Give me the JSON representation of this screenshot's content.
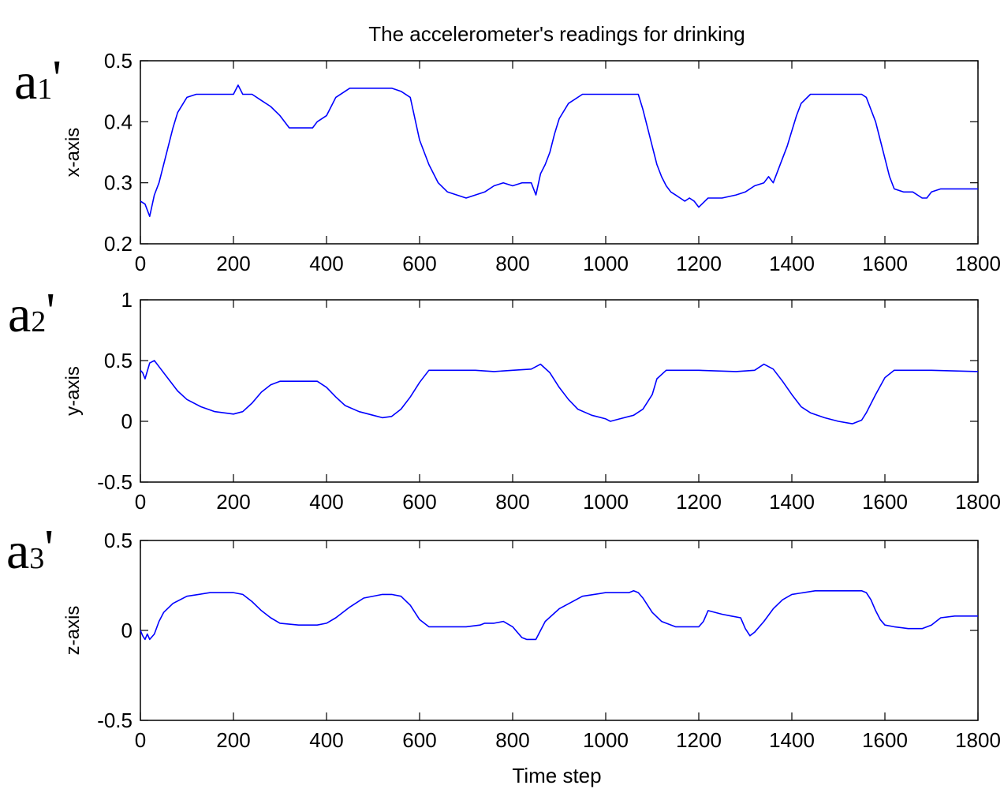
{
  "title": "The accelerometer's readings for drinking",
  "xlabel": "Time step",
  "line_color": "#0000ff",
  "chart_data": [
    {
      "type": "line",
      "panel_tag": {
        "main": "a",
        "sub": "1",
        "prime": "'"
      },
      "ylabel": "x-axis",
      "xlim": [
        0,
        1800
      ],
      "ylim": [
        0.2,
        0.5
      ],
      "xticks": [
        0,
        200,
        400,
        600,
        800,
        1000,
        1200,
        1400,
        1600,
        1800
      ],
      "yticks": [
        0.2,
        0.3,
        0.4,
        0.5
      ],
      "ytick_labels": [
        "0.2",
        "0.3",
        "0.4",
        "0.5"
      ],
      "series": [
        {
          "x": [
            0,
            10,
            20,
            30,
            40,
            50,
            60,
            70,
            80,
            100,
            120,
            150,
            180,
            200,
            210,
            220,
            240,
            260,
            280,
            300,
            320,
            350,
            370,
            380,
            400,
            420,
            450,
            480,
            510,
            540,
            560,
            580,
            600,
            620,
            640,
            660,
            680,
            700,
            720,
            740,
            760,
            780,
            800,
            820,
            840,
            850,
            860,
            870,
            880,
            890,
            900,
            920,
            950,
            1000,
            1040,
            1060,
            1070,
            1080,
            1090,
            1100,
            1110,
            1120,
            1130,
            1140,
            1150,
            1160,
            1170,
            1180,
            1190,
            1200,
            1220,
            1250,
            1280,
            1300,
            1320,
            1340,
            1350,
            1360,
            1370,
            1380,
            1390,
            1400,
            1410,
            1420,
            1440,
            1480,
            1520,
            1540,
            1550,
            1560,
            1570,
            1580,
            1590,
            1600,
            1610,
            1620,
            1640,
            1660,
            1680,
            1690,
            1700,
            1720,
            1750,
            1800
          ],
          "y": [
            0.27,
            0.265,
            0.245,
            0.28,
            0.3,
            0.33,
            0.36,
            0.39,
            0.415,
            0.44,
            0.445,
            0.445,
            0.445,
            0.445,
            0.46,
            0.445,
            0.445,
            0.435,
            0.425,
            0.41,
            0.39,
            0.39,
            0.39,
            0.4,
            0.41,
            0.44,
            0.455,
            0.455,
            0.455,
            0.455,
            0.45,
            0.44,
            0.37,
            0.33,
            0.3,
            0.285,
            0.28,
            0.275,
            0.28,
            0.285,
            0.295,
            0.3,
            0.295,
            0.3,
            0.3,
            0.28,
            0.315,
            0.33,
            0.35,
            0.38,
            0.405,
            0.43,
            0.445,
            0.445,
            0.445,
            0.445,
            0.445,
            0.42,
            0.39,
            0.36,
            0.33,
            0.31,
            0.295,
            0.285,
            0.28,
            0.275,
            0.27,
            0.275,
            0.27,
            0.26,
            0.275,
            0.275,
            0.28,
            0.285,
            0.295,
            0.3,
            0.31,
            0.3,
            0.32,
            0.34,
            0.36,
            0.385,
            0.41,
            0.43,
            0.445,
            0.445,
            0.445,
            0.445,
            0.445,
            0.44,
            0.42,
            0.4,
            0.37,
            0.34,
            0.31,
            0.29,
            0.285,
            0.285,
            0.275,
            0.275,
            0.285,
            0.29,
            0.29,
            0.29
          ]
        }
      ]
    },
    {
      "type": "line",
      "panel_tag": {
        "main": "a",
        "sub": "2",
        "prime": "'"
      },
      "ylabel": "y-axis",
      "xlim": [
        0,
        1800
      ],
      "ylim": [
        -0.5,
        1
      ],
      "xticks": [
        0,
        200,
        400,
        600,
        800,
        1000,
        1200,
        1400,
        1600,
        1800
      ],
      "yticks": [
        -0.5,
        0,
        0.5,
        1
      ],
      "ytick_labels": [
        "-0.5",
        "0",
        "0.5",
        "1"
      ],
      "series": [
        {
          "x": [
            0,
            5,
            10,
            20,
            30,
            40,
            60,
            80,
            100,
            130,
            160,
            200,
            220,
            240,
            260,
            280,
            300,
            340,
            380,
            400,
            420,
            440,
            470,
            500,
            520,
            540,
            560,
            580,
            600,
            620,
            640,
            680,
            720,
            760,
            800,
            840,
            860,
            880,
            900,
            920,
            940,
            970,
            1000,
            1010,
            1030,
            1060,
            1080,
            1100,
            1110,
            1130,
            1200,
            1280,
            1320,
            1340,
            1360,
            1380,
            1400,
            1420,
            1440,
            1470,
            1500,
            1530,
            1550,
            1560,
            1580,
            1600,
            1620,
            1700,
            1800
          ],
          "y": [
            0.42,
            0.4,
            0.35,
            0.48,
            0.5,
            0.45,
            0.35,
            0.25,
            0.18,
            0.12,
            0.08,
            0.06,
            0.08,
            0.15,
            0.24,
            0.3,
            0.33,
            0.33,
            0.33,
            0.28,
            0.2,
            0.13,
            0.08,
            0.05,
            0.03,
            0.04,
            0.1,
            0.2,
            0.32,
            0.42,
            0.42,
            0.42,
            0.42,
            0.41,
            0.42,
            0.43,
            0.47,
            0.4,
            0.28,
            0.18,
            0.1,
            0.05,
            0.02,
            0.0,
            0.02,
            0.05,
            0.1,
            0.22,
            0.35,
            0.42,
            0.42,
            0.41,
            0.42,
            0.47,
            0.43,
            0.33,
            0.22,
            0.12,
            0.07,
            0.03,
            0.0,
            -0.02,
            0.01,
            0.07,
            0.22,
            0.36,
            0.42,
            0.42,
            0.41
          ]
        }
      ]
    },
    {
      "type": "line",
      "panel_tag": {
        "main": "a",
        "sub": "3",
        "prime": "'"
      },
      "ylabel": "z-axis",
      "xlim": [
        0,
        1800
      ],
      "ylim": [
        -0.5,
        0.5
      ],
      "xticks": [
        0,
        200,
        400,
        600,
        800,
        1000,
        1200,
        1400,
        1600,
        1800
      ],
      "yticks": [
        -0.5,
        0,
        0.5
      ],
      "ytick_labels": [
        "-0.5",
        "0",
        "0.5"
      ],
      "series": [
        {
          "x": [
            0,
            5,
            10,
            15,
            20,
            30,
            40,
            50,
            70,
            100,
            150,
            200,
            220,
            240,
            260,
            280,
            300,
            340,
            380,
            400,
            420,
            450,
            480,
            520,
            540,
            560,
            580,
            600,
            620,
            660,
            700,
            730,
            740,
            760,
            780,
            800,
            810,
            820,
            830,
            850,
            870,
            900,
            950,
            1000,
            1050,
            1060,
            1070,
            1080,
            1100,
            1120,
            1150,
            1180,
            1200,
            1210,
            1220,
            1250,
            1270,
            1290,
            1300,
            1310,
            1320,
            1340,
            1360,
            1380,
            1400,
            1450,
            1500,
            1550,
            1560,
            1570,
            1580,
            1590,
            1600,
            1620,
            1650,
            1680,
            1700,
            1720,
            1750,
            1800
          ],
          "y": [
            0.0,
            -0.03,
            -0.05,
            -0.02,
            -0.05,
            -0.02,
            0.05,
            0.1,
            0.15,
            0.19,
            0.21,
            0.21,
            0.2,
            0.16,
            0.11,
            0.07,
            0.04,
            0.03,
            0.03,
            0.04,
            0.07,
            0.13,
            0.18,
            0.2,
            0.2,
            0.19,
            0.14,
            0.06,
            0.02,
            0.02,
            0.02,
            0.03,
            0.04,
            0.04,
            0.05,
            0.02,
            -0.01,
            -0.04,
            -0.05,
            -0.05,
            0.05,
            0.12,
            0.19,
            0.21,
            0.21,
            0.22,
            0.21,
            0.18,
            0.1,
            0.05,
            0.02,
            0.02,
            0.02,
            0.05,
            0.11,
            0.09,
            0.08,
            0.07,
            0.01,
            -0.03,
            -0.01,
            0.05,
            0.12,
            0.17,
            0.2,
            0.22,
            0.22,
            0.22,
            0.21,
            0.17,
            0.11,
            0.06,
            0.03,
            0.02,
            0.01,
            0.01,
            0.03,
            0.07,
            0.08,
            0.08
          ]
        }
      ]
    }
  ]
}
